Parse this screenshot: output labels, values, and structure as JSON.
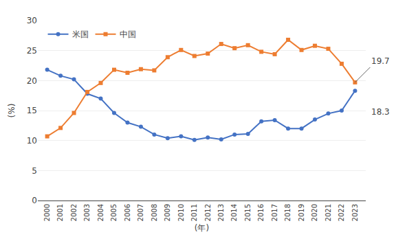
{
  "chart_data": {
    "type": "line",
    "x": [
      2000,
      2001,
      2002,
      2003,
      2004,
      2005,
      2006,
      2007,
      2008,
      2009,
      2010,
      2011,
      2012,
      2013,
      2014,
      2015,
      2016,
      2017,
      2018,
      2019,
      2020,
      2021,
      2022,
      2023
    ],
    "series": [
      {
        "name": "米国",
        "color": "#4472c4",
        "marker": "circle",
        "values": [
          21.8,
          20.8,
          20.2,
          17.8,
          17.0,
          14.6,
          13.0,
          12.3,
          11.0,
          10.4,
          10.7,
          10.1,
          10.5,
          10.2,
          11.0,
          11.1,
          13.2,
          13.4,
          12.0,
          12.0,
          13.5,
          14.5,
          15.0,
          18.3
        ]
      },
      {
        "name": "中国",
        "color": "#ed7d31",
        "marker": "square",
        "values": [
          10.7,
          12.1,
          14.6,
          18.1,
          19.6,
          21.8,
          21.3,
          21.9,
          21.7,
          23.9,
          25.1,
          24.1,
          24.5,
          26.1,
          25.4,
          25.9,
          24.8,
          24.4,
          26.8,
          25.1,
          25.8,
          25.3,
          22.8,
          19.7
        ]
      }
    ],
    "xlabel": "(年)",
    "ylabel": "(%)",
    "xlim": [
      1999.3,
      2023.8
    ],
    "xticks": [
      2000,
      2001,
      2002,
      2003,
      2004,
      2005,
      2006,
      2007,
      2008,
      2009,
      2010,
      2011,
      2012,
      2013,
      2014,
      2015,
      2016,
      2017,
      2018,
      2019,
      2020,
      2021,
      2022,
      2023
    ],
    "ylim": [
      0,
      30
    ],
    "yticks": [
      0,
      5,
      10,
      15,
      20,
      25,
      30
    ],
    "grid": "y",
    "legend": "upper left",
    "annotations": [
      {
        "text": "19.7",
        "x": 2023,
        "y": 19.7
      },
      {
        "text": "18.3",
        "x": 2023,
        "y": 18.3
      }
    ]
  }
}
